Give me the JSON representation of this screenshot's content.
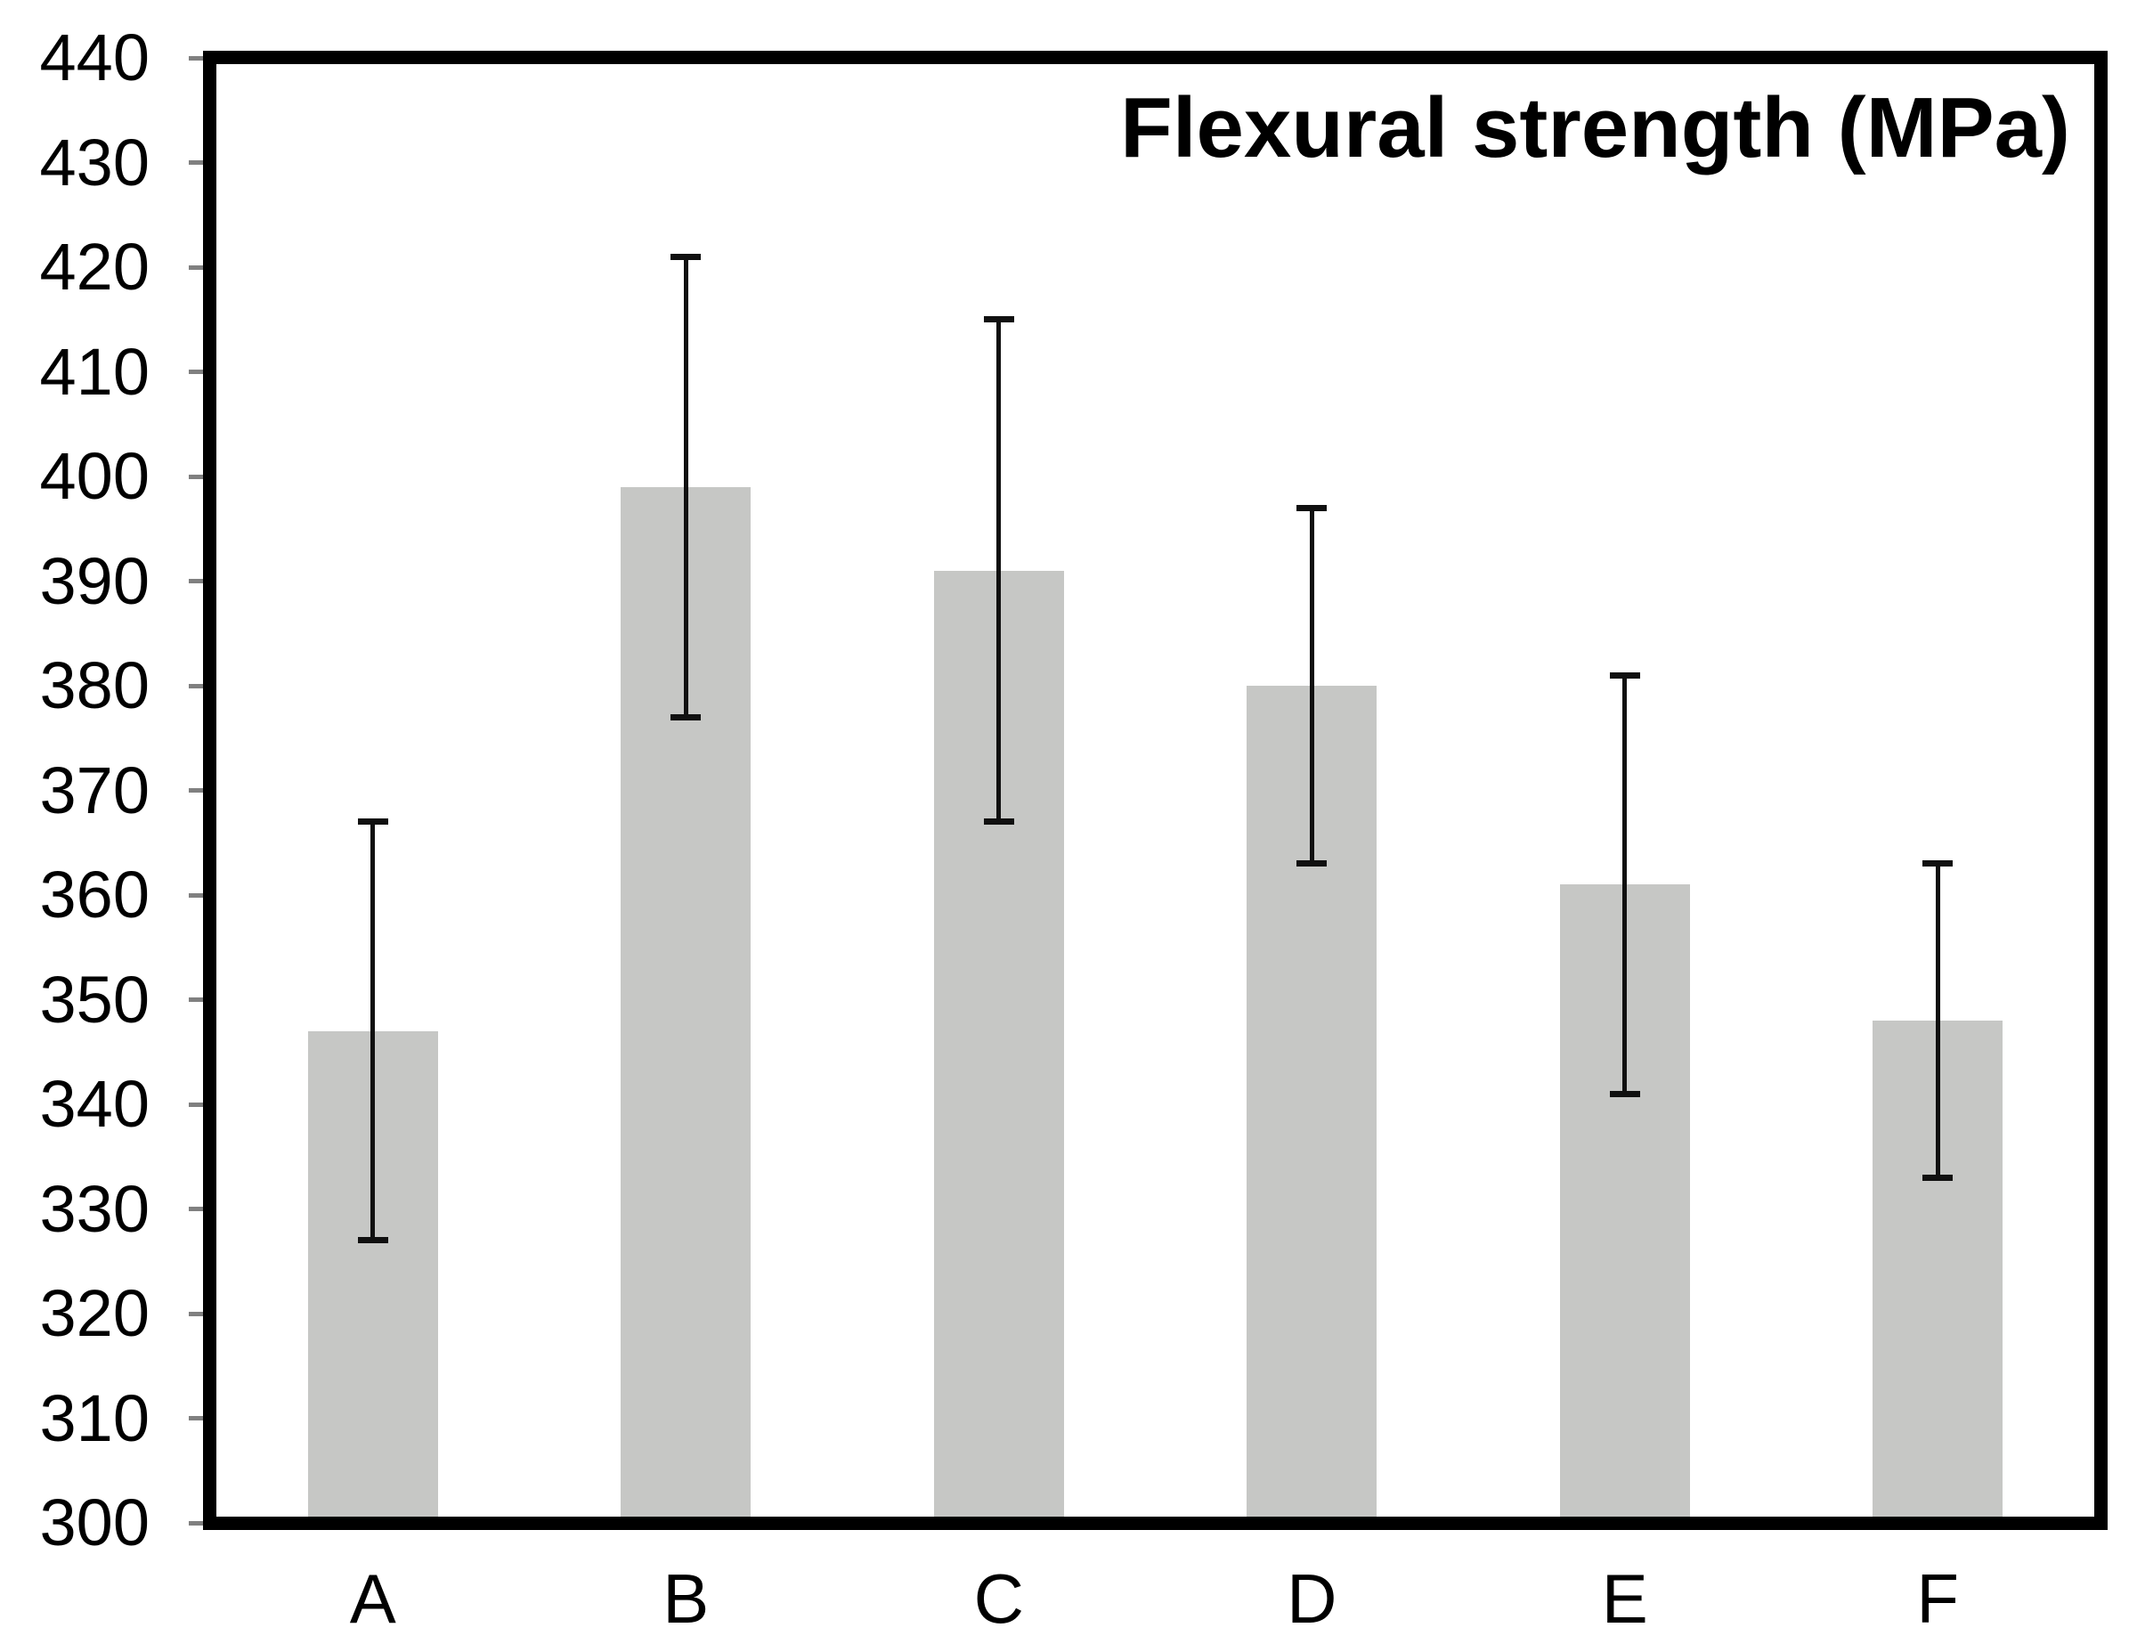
{
  "chart_data": {
    "type": "bar",
    "title": "Flexural strength (MPa)",
    "categories": [
      "A",
      "B",
      "C",
      "D",
      "E",
      "F"
    ],
    "values": [
      347,
      399,
      391,
      380,
      361,
      348
    ],
    "error_low": [
      327,
      377,
      367,
      363,
      341,
      333
    ],
    "error_high": [
      367,
      421,
      415,
      397,
      381,
      363
    ],
    "xlabel": "",
    "ylabel": "",
    "ylim": [
      300,
      440
    ],
    "ytick_step": 10,
    "yticks": [
      440,
      430,
      420,
      410,
      400,
      390,
      380,
      370,
      360,
      350,
      340,
      330,
      320,
      310,
      300
    ],
    "grid": false,
    "legend": false,
    "colors": {
      "bar": "#c6c7c5",
      "error": "#101010",
      "axis": "#000000",
      "tick": "#808080",
      "text": "#000000",
      "background": "#ffffff"
    }
  }
}
